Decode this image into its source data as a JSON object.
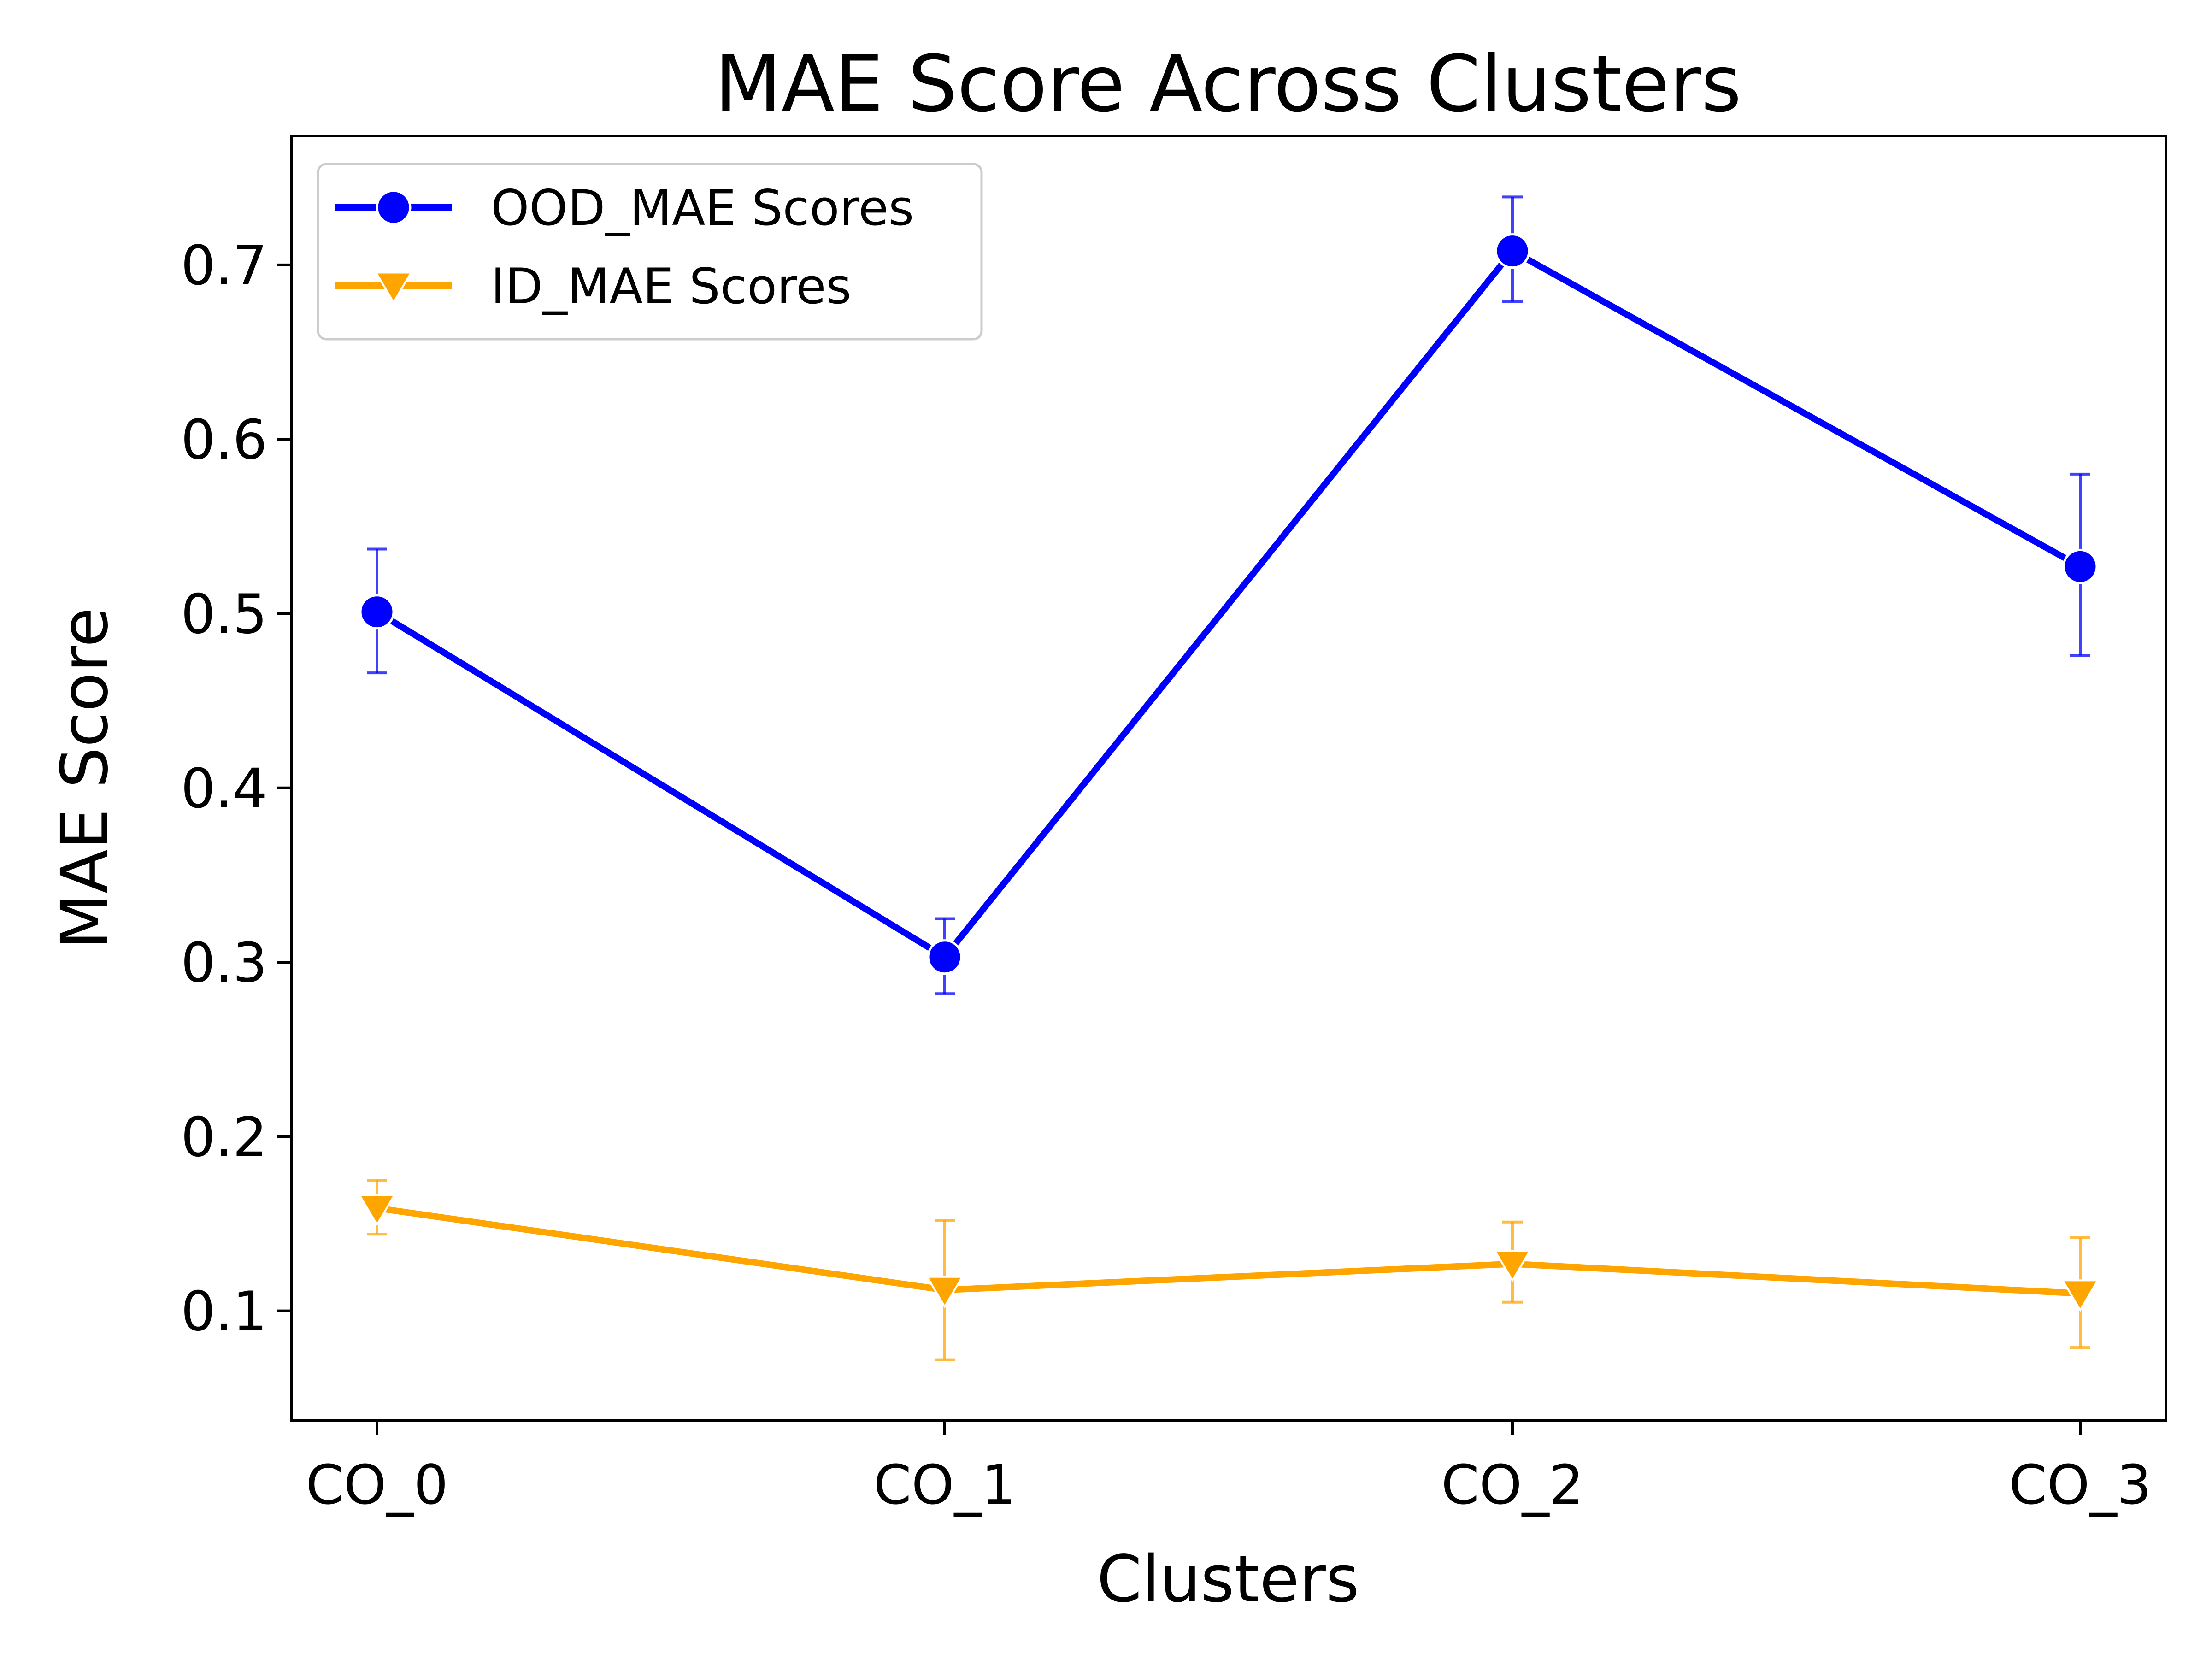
{
  "chart_data": {
    "type": "line",
    "title": "MAE Score Across Clusters",
    "xlabel": "Clusters",
    "ylabel": "MAE Score",
    "categories": [
      "CO_0",
      "CO_1",
      "CO_2",
      "CO_3"
    ],
    "ylim": [
      0.037,
      0.774
    ],
    "yticks": [
      "0.1",
      "0.2",
      "0.3",
      "0.4",
      "0.5",
      "0.6",
      "0.7"
    ],
    "grid": false,
    "legend_position": "top-left",
    "series": [
      {
        "name": "OOD_MAE Scores",
        "values": [
          0.501,
          0.303,
          0.708,
          0.527
        ],
        "error_low": [
          0.466,
          0.282,
          0.679,
          0.476
        ],
        "error_high": [
          0.537,
          0.325,
          0.739,
          0.58
        ],
        "color": "#0000ff",
        "marker": "circle"
      },
      {
        "name": "ID_MAE Scores",
        "values": [
          0.159,
          0.112,
          0.127,
          0.11
        ],
        "error_low": [
          0.144,
          0.072,
          0.105,
          0.079
        ],
        "error_high": [
          0.175,
          0.152,
          0.151,
          0.142
        ],
        "color": "#ffa500",
        "marker": "triangle-down"
      }
    ]
  }
}
